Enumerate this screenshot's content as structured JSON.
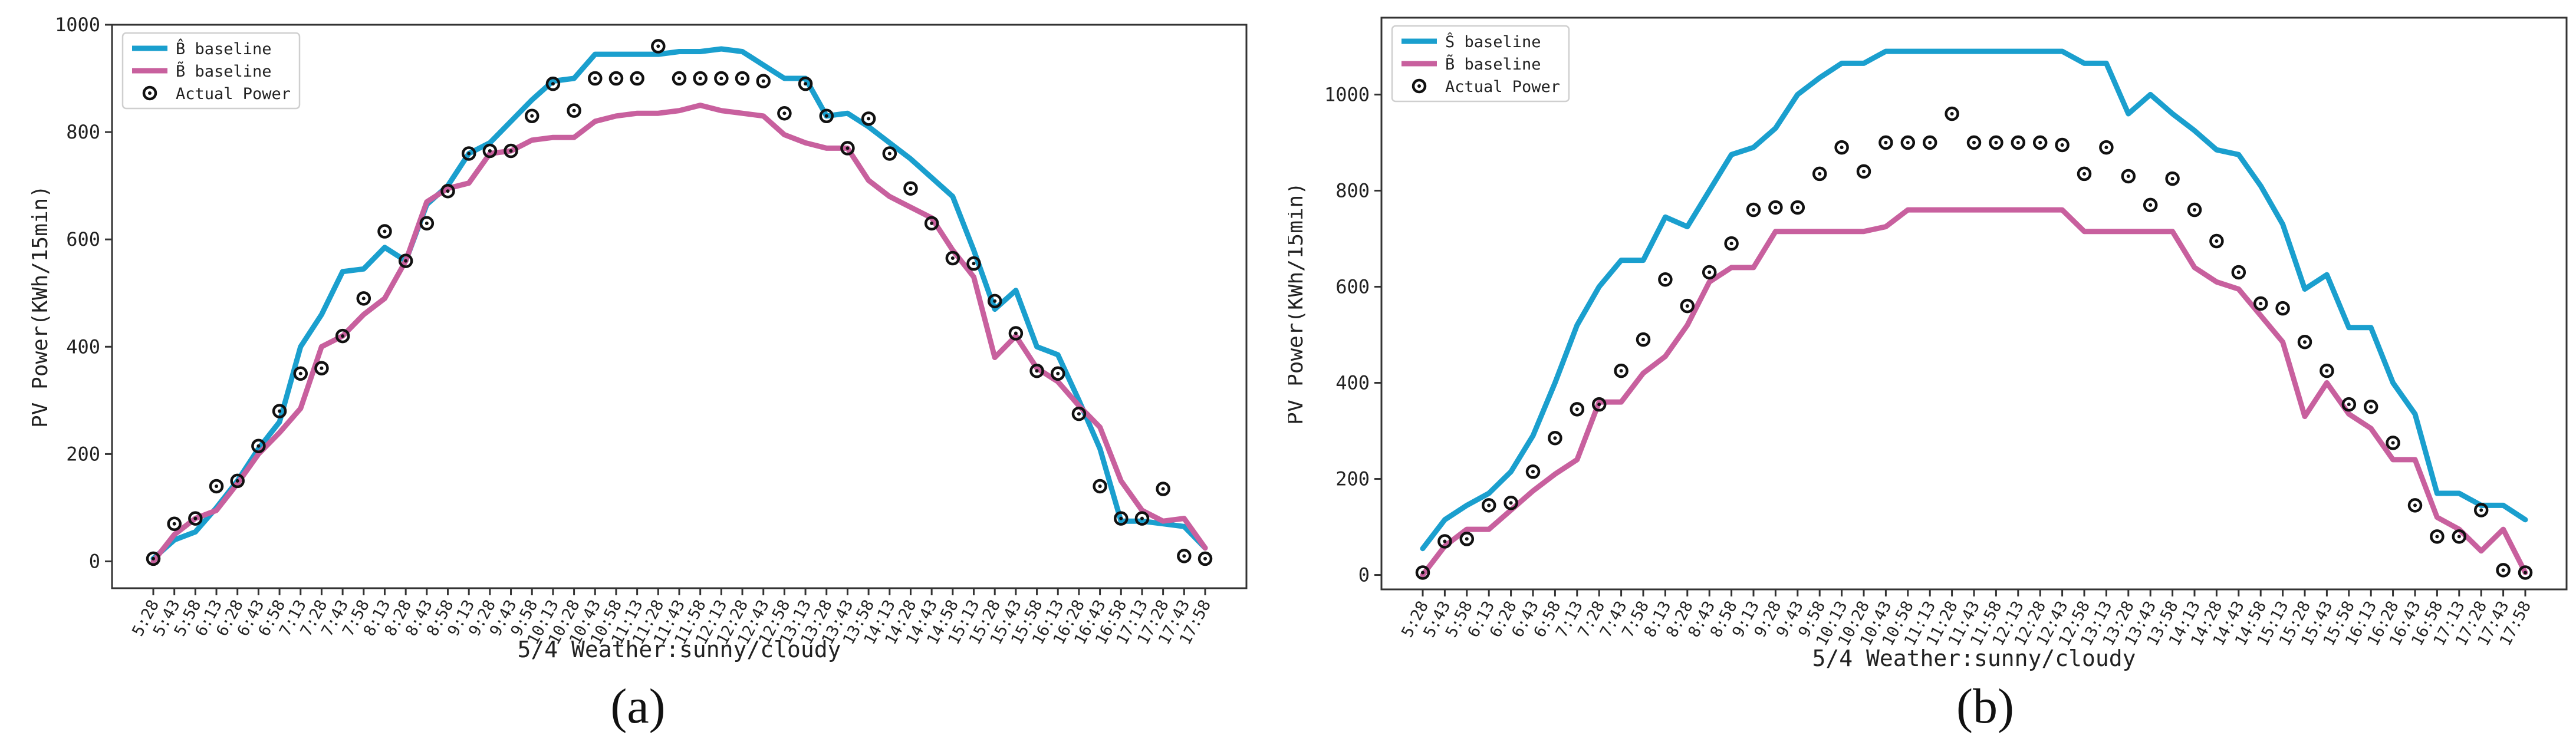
{
  "captions": [
    "(a)",
    "(b)"
  ],
  "chart_data": [
    {
      "type": "line",
      "xlabel": "5/4 Weather:sunny/cloudy",
      "ylabel": "PV Power(KWh/15min)",
      "ylim": [
        -50,
        1000
      ],
      "yticks": [
        0,
        200,
        400,
        600,
        800,
        1000
      ],
      "grid": false,
      "legend": "top-left",
      "categories": [
        "5:28",
        "5:43",
        "5:58",
        "6:13",
        "6:28",
        "6:43",
        "6:58",
        "7:13",
        "7:28",
        "7:43",
        "7:58",
        "8:13",
        "8:28",
        "8:43",
        "8:58",
        "9:13",
        "9:28",
        "9:43",
        "9:58",
        "10:13",
        "10:28",
        "10:43",
        "10:58",
        "11:13",
        "11:28",
        "11:43",
        "11:58",
        "12:13",
        "12:28",
        "12:43",
        "12:58",
        "13:13",
        "13:28",
        "13:43",
        "13:58",
        "14:13",
        "14:28",
        "14:43",
        "14:58",
        "15:13",
        "15:28",
        "15:43",
        "15:58",
        "16:13",
        "16:28",
        "16:43",
        "16:58",
        "17:13",
        "17:28",
        "17:43",
        "17:58"
      ],
      "legend_labels": [
        "B̂ baseline",
        "B̃ baseline",
        "Actual Power"
      ],
      "series": [
        {
          "name": "B̂ baseline",
          "style": "line",
          "color": "#1a9fce",
          "values": [
            5,
            40,
            55,
            100,
            150,
            210,
            260,
            400,
            460,
            540,
            545,
            585,
            560,
            665,
            700,
            760,
            780,
            820,
            860,
            895,
            900,
            945,
            945,
            945,
            945,
            950,
            950,
            955,
            950,
            925,
            900,
            900,
            830,
            835,
            810,
            780,
            750,
            715,
            680,
            580,
            470,
            505,
            400,
            385,
            300,
            210,
            75,
            75,
            70,
            65,
            25
          ]
        },
        {
          "name": "B̃ baseline",
          "style": "line",
          "color": "#c8609e",
          "values": [
            0,
            50,
            80,
            95,
            145,
            200,
            240,
            285,
            400,
            420,
            460,
            490,
            560,
            670,
            695,
            705,
            760,
            765,
            785,
            790,
            790,
            820,
            830,
            835,
            835,
            840,
            850,
            840,
            835,
            830,
            795,
            780,
            770,
            770,
            710,
            680,
            660,
            640,
            580,
            530,
            380,
            420,
            360,
            335,
            290,
            250,
            150,
            95,
            75,
            80,
            25
          ]
        },
        {
          "name": "Actual Power",
          "style": "marker",
          "color": "#111111",
          "values": [
            5,
            70,
            80,
            140,
            150,
            215,
            280,
            350,
            360,
            420,
            490,
            615,
            560,
            630,
            690,
            760,
            765,
            765,
            830,
            890,
            840,
            900,
            900,
            900,
            960,
            900,
            900,
            900,
            900,
            895,
            835,
            890,
            830,
            770,
            825,
            760,
            695,
            630,
            565,
            555,
            485,
            425,
            355,
            350,
            275,
            140,
            80,
            80,
            135,
            10,
            5
          ]
        }
      ]
    },
    {
      "type": "line",
      "xlabel": "5/4 Weather:sunny/cloudy",
      "ylabel": "PV Power(KWh/15min)",
      "ylim": [
        -30,
        1160
      ],
      "yticks": [
        0,
        200,
        400,
        600,
        800,
        1000
      ],
      "grid": false,
      "legend": "top-left",
      "categories": [
        "5:28",
        "5:43",
        "5:58",
        "6:13",
        "6:28",
        "6:43",
        "6:58",
        "7:13",
        "7:28",
        "7:43",
        "7:58",
        "8:13",
        "8:28",
        "8:43",
        "8:58",
        "9:13",
        "9:28",
        "9:43",
        "9:58",
        "10:13",
        "10:28",
        "10:43",
        "10:58",
        "11:13",
        "11:28",
        "11:43",
        "11:58",
        "12:13",
        "12:28",
        "12:43",
        "12:58",
        "13:13",
        "13:28",
        "13:43",
        "13:58",
        "14:13",
        "14:28",
        "14:43",
        "14:58",
        "15:13",
        "15:28",
        "15:43",
        "15:58",
        "16:13",
        "16:28",
        "16:43",
        "16:58",
        "17:13",
        "17:28",
        "17:43",
        "17:58"
      ],
      "legend_labels": [
        "Ŝ baseline",
        "B̃ baseline",
        "Actual Power"
      ],
      "series": [
        {
          "name": "Ŝ baseline",
          "style": "line",
          "color": "#1a9fce",
          "values": [
            55,
            115,
            145,
            170,
            215,
            290,
            400,
            520,
            600,
            655,
            655,
            745,
            725,
            800,
            875,
            890,
            930,
            1000,
            1035,
            1065,
            1065,
            1090,
            1090,
            1090,
            1090,
            1090,
            1090,
            1090,
            1090,
            1090,
            1065,
            1065,
            960,
            1000,
            960,
            925,
            885,
            875,
            810,
            730,
            595,
            625,
            515,
            515,
            400,
            335,
            170,
            170,
            145,
            145,
            115
          ]
        },
        {
          "name": "B̃ baseline",
          "style": "line",
          "color": "#c8609e",
          "values": [
            0,
            60,
            95,
            95,
            135,
            175,
            210,
            240,
            360,
            360,
            420,
            455,
            520,
            610,
            640,
            640,
            715,
            715,
            715,
            715,
            715,
            725,
            760,
            760,
            760,
            760,
            760,
            760,
            760,
            760,
            715,
            715,
            715,
            715,
            715,
            640,
            610,
            595,
            540,
            485,
            330,
            400,
            335,
            305,
            240,
            240,
            120,
            95,
            50,
            95,
            5
          ]
        },
        {
          "name": "Actual Power",
          "style": "marker",
          "color": "#111111",
          "values": [
            5,
            70,
            75,
            145,
            150,
            215,
            285,
            345,
            355,
            425,
            490,
            615,
            560,
            630,
            690,
            760,
            765,
            765,
            835,
            890,
            840,
            900,
            900,
            900,
            960,
            900,
            900,
            900,
            900,
            895,
            835,
            890,
            830,
            770,
            825,
            760,
            695,
            630,
            565,
            555,
            485,
            425,
            355,
            350,
            275,
            145,
            80,
            80,
            135,
            10,
            5
          ]
        }
      ]
    }
  ]
}
